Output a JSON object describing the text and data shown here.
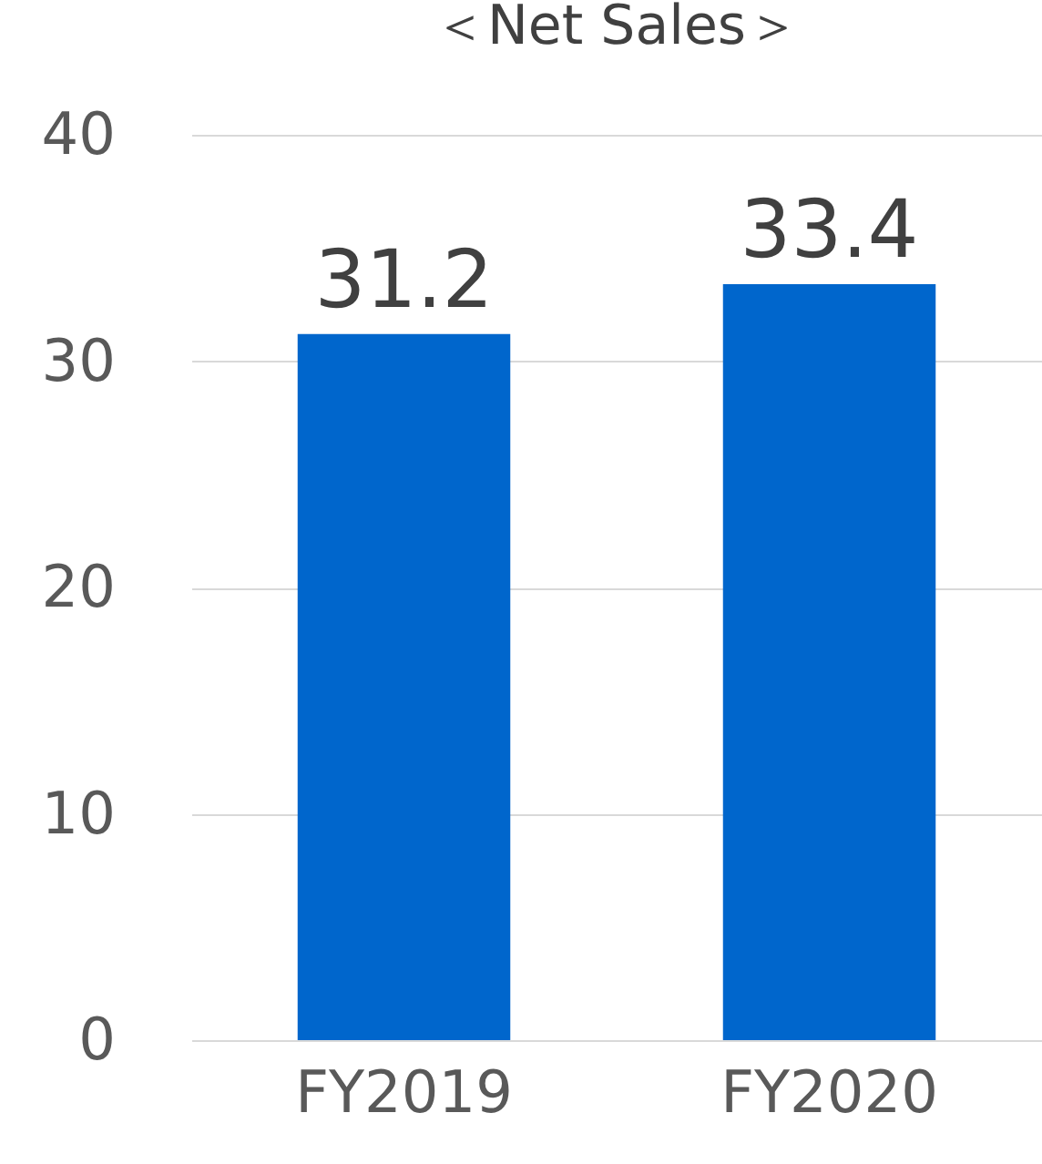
{
  "chart_data": {
    "type": "bar",
    "title": "＜Net Sales＞",
    "categories": [
      "FY2019",
      "FY2020"
    ],
    "values": [
      31.2,
      33.4
    ],
    "color": "#0066cc",
    "ylim": [
      0,
      40
    ],
    "yticks": [
      0,
      10,
      20,
      30,
      40
    ],
    "grid": "y",
    "data_labels": true
  }
}
